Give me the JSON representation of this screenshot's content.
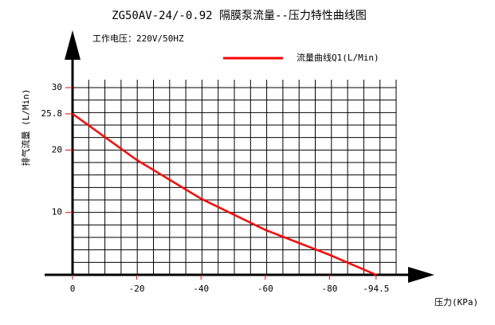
{
  "chart_data": {
    "type": "line",
    "title": "ZG50AV-24/-0.92 隔膜泵流量--压力特性曲线图",
    "subtitle": "工作电压：220V/50HZ",
    "x_label": "压力(KPa)",
    "y_label": "排气流量 (L/Min)",
    "x": [
      0,
      -20,
      -40,
      -60,
      -80,
      -94.5
    ],
    "series": [
      {
        "name": "流量曲线Q1(L/Min)",
        "color": "#ff0000",
        "values": [
          25.8,
          18.4,
          12.2,
          7.2,
          3.2,
          0
        ]
      }
    ],
    "xlim": [
      0,
      -100
    ],
    "xticks": [
      0,
      -20,
      -40,
      -60,
      -80,
      -94.5
    ],
    "ylim": [
      0,
      30
    ],
    "yticks": [
      10,
      20,
      25.8,
      30
    ],
    "grid": true
  }
}
